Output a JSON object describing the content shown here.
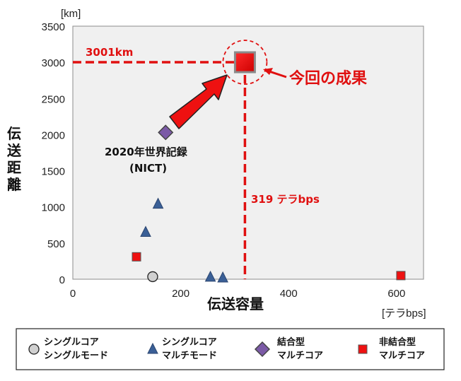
{
  "chart_data": {
    "type": "scatter",
    "title": "",
    "xlabel": "伝送容量",
    "ylabel": "伝送距離",
    "x_unit": "[テラbps]",
    "y_unit": "[km]",
    "xlim": [
      0,
      650
    ],
    "ylim": [
      0,
      3500
    ],
    "x_ticks": [
      0,
      200,
      400,
      600
    ],
    "y_ticks": [
      0,
      500,
      1000,
      1500,
      2000,
      2500,
      3000,
      3500
    ],
    "grid": false,
    "legend_position": "bottom",
    "series": [
      {
        "name": "シングルコア シングルモード",
        "line1": "シングルコア",
        "line2": "シングルモード",
        "marker": "circle",
        "color": "#d0d0d0",
        "points": [
          {
            "x": 148,
            "y": 35
          }
        ]
      },
      {
        "name": "シングルコア マルチモード",
        "line1": "シングルコア",
        "line2": "マルチモード",
        "marker": "triangle",
        "color": "#3a5f96",
        "points": [
          {
            "x": 135,
            "y": 650
          },
          {
            "x": 158,
            "y": 1040
          },
          {
            "x": 255,
            "y": 30
          },
          {
            "x": 278,
            "y": 20
          }
        ]
      },
      {
        "name": "結合型 マルチコア",
        "line1": "結合型",
        "line2": "マルチコア",
        "marker": "diamond",
        "color": "#7b5aa6",
        "points": [
          {
            "x": 172,
            "y": 2030
          }
        ]
      },
      {
        "name": "非結合型 マルチコア",
        "line1": "非結合型",
        "line2": "マルチコア",
        "marker": "square",
        "color": "#ee1111",
        "points": [
          {
            "x": 118,
            "y": 310
          },
          {
            "x": 608,
            "y": 50
          }
        ]
      }
    ],
    "highlight": {
      "x": 319,
      "y": 3001,
      "color": "#ee1111"
    },
    "annotations": {
      "distance_label": "3001km",
      "capacity_label": "319 テラbps",
      "result_label": "今回の成果",
      "record_line1": "2020年世界記録",
      "record_line2": "(NICT)"
    }
  },
  "colors": {
    "accent": "#e01010",
    "plot_bg": "#f0f0f0"
  }
}
